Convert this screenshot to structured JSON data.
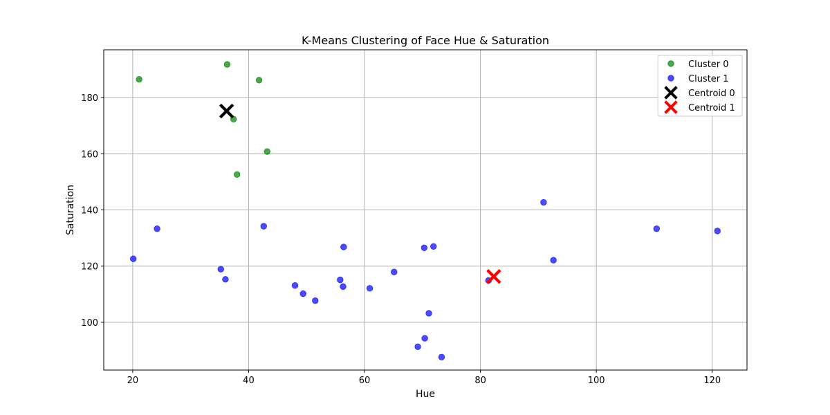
{
  "chart_data": {
    "type": "scatter",
    "title": "K-Means Clustering of Face Hue & Saturation",
    "xlabel": "Hue",
    "ylabel": "Saturation",
    "xlim": [
      15,
      126
    ],
    "ylim": [
      83,
      197
    ],
    "xticks": [
      20,
      40,
      60,
      80,
      100,
      120
    ],
    "yticks": [
      100,
      120,
      140,
      160,
      180
    ],
    "grid": true,
    "legend_position": "top-right",
    "series": [
      {
        "name": "Cluster 0",
        "color": "#008000",
        "marker": "circle",
        "points": [
          {
            "x": 21.1,
            "y": 186.5
          },
          {
            "x": 36.3,
            "y": 191.8
          },
          {
            "x": 41.8,
            "y": 186.2
          },
          {
            "x": 37.4,
            "y": 172.3
          },
          {
            "x": 43.2,
            "y": 160.8
          },
          {
            "x": 38.0,
            "y": 152.6
          }
        ]
      },
      {
        "name": "Cluster 1",
        "color": "#0000ff",
        "marker": "circle",
        "points": [
          {
            "x": 20.1,
            "y": 122.6
          },
          {
            "x": 24.2,
            "y": 133.3
          },
          {
            "x": 35.2,
            "y": 118.9
          },
          {
            "x": 36.0,
            "y": 115.3
          },
          {
            "x": 42.6,
            "y": 134.2
          },
          {
            "x": 48.0,
            "y": 113.1
          },
          {
            "x": 49.4,
            "y": 110.2
          },
          {
            "x": 51.5,
            "y": 107.7
          },
          {
            "x": 55.8,
            "y": 115.1
          },
          {
            "x": 56.3,
            "y": 112.7
          },
          {
            "x": 56.4,
            "y": 126.8
          },
          {
            "x": 60.9,
            "y": 112.1
          },
          {
            "x": 65.1,
            "y": 117.9
          },
          {
            "x": 69.2,
            "y": 91.3
          },
          {
            "x": 70.3,
            "y": 126.5
          },
          {
            "x": 70.4,
            "y": 94.3
          },
          {
            "x": 71.1,
            "y": 103.2
          },
          {
            "x": 71.9,
            "y": 127.0
          },
          {
            "x": 73.3,
            "y": 87.6
          },
          {
            "x": 81.4,
            "y": 114.9
          },
          {
            "x": 90.9,
            "y": 142.7
          },
          {
            "x": 92.6,
            "y": 122.1
          },
          {
            "x": 110.4,
            "y": 133.3
          },
          {
            "x": 120.9,
            "y": 132.5
          }
        ]
      },
      {
        "name": "Centroid 0",
        "color": "#000000",
        "marker": "x",
        "points": [
          {
            "x": 36.2,
            "y": 175.2
          }
        ]
      },
      {
        "name": "Centroid 1",
        "color": "#ff0000",
        "marker": "x",
        "points": [
          {
            "x": 82.3,
            "y": 116.3
          }
        ]
      }
    ]
  }
}
